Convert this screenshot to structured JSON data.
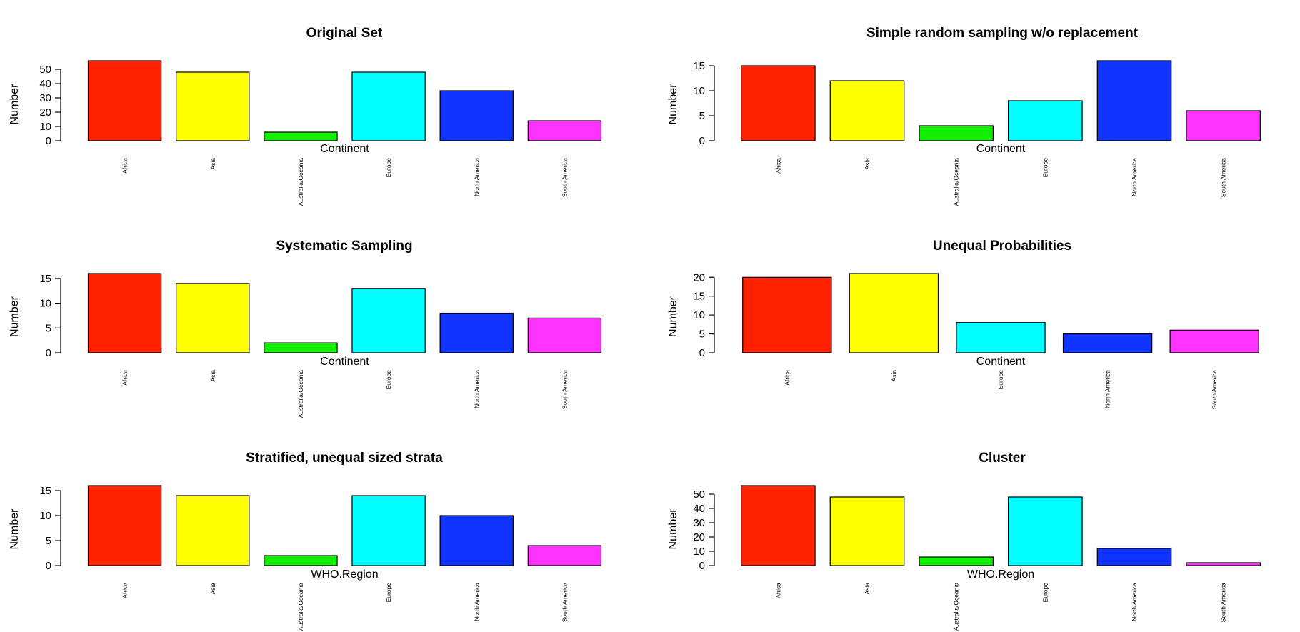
{
  "charts": [
    {
      "title": "Original Set",
      "ylabel": "Number",
      "xlabel": "Continent",
      "ticks": [
        0,
        10,
        20,
        30,
        40,
        50
      ],
      "ylim": [
        0,
        56
      ],
      "categories": [
        "Africa",
        "Asia",
        "Australia/Oceania",
        "Europe",
        "North America",
        "South America"
      ],
      "values": [
        56,
        48,
        6,
        48,
        35,
        14
      ],
      "colors": [
        "#ff2200",
        "#ffff00",
        "#11ee00",
        "#00ffff",
        "#1133ff",
        "#ff33ff"
      ]
    },
    {
      "title": "Simple random sampling w/o replacement",
      "ylabel": "Number",
      "xlabel": "Continent",
      "ticks": [
        0,
        5,
        10,
        15
      ],
      "ylim": [
        0,
        16
      ],
      "categories": [
        "Africa",
        "Asia",
        "Australia/Oceania",
        "Europe",
        "North America",
        "South America"
      ],
      "values": [
        15,
        12,
        3,
        8,
        16,
        6
      ],
      "colors": [
        "#ff2200",
        "#ffff00",
        "#11ee00",
        "#00ffff",
        "#1133ff",
        "#ff33ff"
      ]
    },
    {
      "title": "Systematic Sampling",
      "ylabel": "Number",
      "xlabel": "Continent",
      "ticks": [
        0,
        5,
        10,
        15
      ],
      "ylim": [
        0,
        16
      ],
      "categories": [
        "Africa",
        "Asia",
        "Australia/Oceania",
        "Europe",
        "North America",
        "South America"
      ],
      "values": [
        16,
        14,
        2,
        13,
        8,
        7
      ],
      "colors": [
        "#ff2200",
        "#ffff00",
        "#11ee00",
        "#00ffff",
        "#1133ff",
        "#ff33ff"
      ]
    },
    {
      "title": "Unequal Probabilities",
      "ylabel": "Number",
      "xlabel": "Continent",
      "ticks": [
        0,
        5,
        10,
        15,
        20
      ],
      "ylim": [
        0,
        21
      ],
      "categories": [
        "Africa",
        "Asia",
        "Europe",
        "North America",
        "South America"
      ],
      "values": [
        20,
        21,
        8,
        5,
        6
      ],
      "colors": [
        "#ff2200",
        "#ffff00",
        "#00ffff",
        "#1133ff",
        "#ff33ff"
      ]
    },
    {
      "title": "Stratified, unequal sized strata",
      "ylabel": "Number",
      "xlabel": "WHO.Region",
      "ticks": [
        0,
        5,
        10,
        15
      ],
      "ylim": [
        0,
        16
      ],
      "categories": [
        "Africa",
        "Asia",
        "Australia/Oceania",
        "Europe",
        "North America",
        "South America"
      ],
      "values": [
        16,
        14,
        2,
        14,
        10,
        4
      ],
      "colors": [
        "#ff2200",
        "#ffff00",
        "#11ee00",
        "#00ffff",
        "#1133ff",
        "#ff33ff"
      ]
    },
    {
      "title": "Cluster",
      "ylabel": "Number",
      "xlabel": "WHO.Region",
      "ticks": [
        0,
        10,
        20,
        30,
        40,
        50
      ],
      "ylim": [
        0,
        56
      ],
      "categories": [
        "Africa",
        "Asia",
        "Australia/Oceania",
        "Europe",
        "North America",
        "South America"
      ],
      "values": [
        56,
        48,
        6,
        48,
        12,
        2
      ],
      "colors": [
        "#ff2200",
        "#ffff00",
        "#11ee00",
        "#00ffff",
        "#1133ff",
        "#ff33ff"
      ]
    }
  ],
  "chart_data": [
    {
      "type": "bar",
      "title": "Original Set",
      "xlabel": "Continent",
      "ylabel": "Number",
      "categories": [
        "Africa",
        "Asia",
        "Australia/Oceania",
        "Europe",
        "North America",
        "South America"
      ],
      "values": [
        56,
        48,
        6,
        48,
        35,
        14
      ],
      "ylim": [
        0,
        56
      ],
      "grid": false
    },
    {
      "type": "bar",
      "title": "Simple random sampling w/o replacement",
      "xlabel": "Continent",
      "ylabel": "Number",
      "categories": [
        "Africa",
        "Asia",
        "Australia/Oceania",
        "Europe",
        "North America",
        "South America"
      ],
      "values": [
        15,
        12,
        3,
        8,
        16,
        6
      ],
      "ylim": [
        0,
        16
      ],
      "grid": false
    },
    {
      "type": "bar",
      "title": "Systematic Sampling",
      "xlabel": "Continent",
      "ylabel": "Number",
      "categories": [
        "Africa",
        "Asia",
        "Australia/Oceania",
        "Europe",
        "North America",
        "South America"
      ],
      "values": [
        16,
        14,
        2,
        13,
        8,
        7
      ],
      "ylim": [
        0,
        16
      ],
      "grid": false
    },
    {
      "type": "bar",
      "title": "Unequal Probabilities",
      "xlabel": "Continent",
      "ylabel": "Number",
      "categories": [
        "Africa",
        "Asia",
        "Europe",
        "North America",
        "South America"
      ],
      "values": [
        20,
        21,
        8,
        5,
        6
      ],
      "ylim": [
        0,
        21
      ],
      "grid": false
    },
    {
      "type": "bar",
      "title": "Stratified, unequal sized strata",
      "xlabel": "WHO.Region",
      "ylabel": "Number",
      "categories": [
        "Africa",
        "Asia",
        "Australia/Oceania",
        "Europe",
        "North America",
        "South America"
      ],
      "values": [
        16,
        14,
        2,
        14,
        10,
        4
      ],
      "ylim": [
        0,
        16
      ],
      "grid": false
    },
    {
      "type": "bar",
      "title": "Cluster",
      "xlabel": "WHO.Region",
      "ylabel": "Number",
      "categories": [
        "Africa",
        "Asia",
        "Australia/Oceania",
        "Europe",
        "North America",
        "South America"
      ],
      "values": [
        56,
        48,
        6,
        48,
        12,
        2
      ],
      "ylim": [
        0,
        56
      ],
      "grid": false
    }
  ]
}
